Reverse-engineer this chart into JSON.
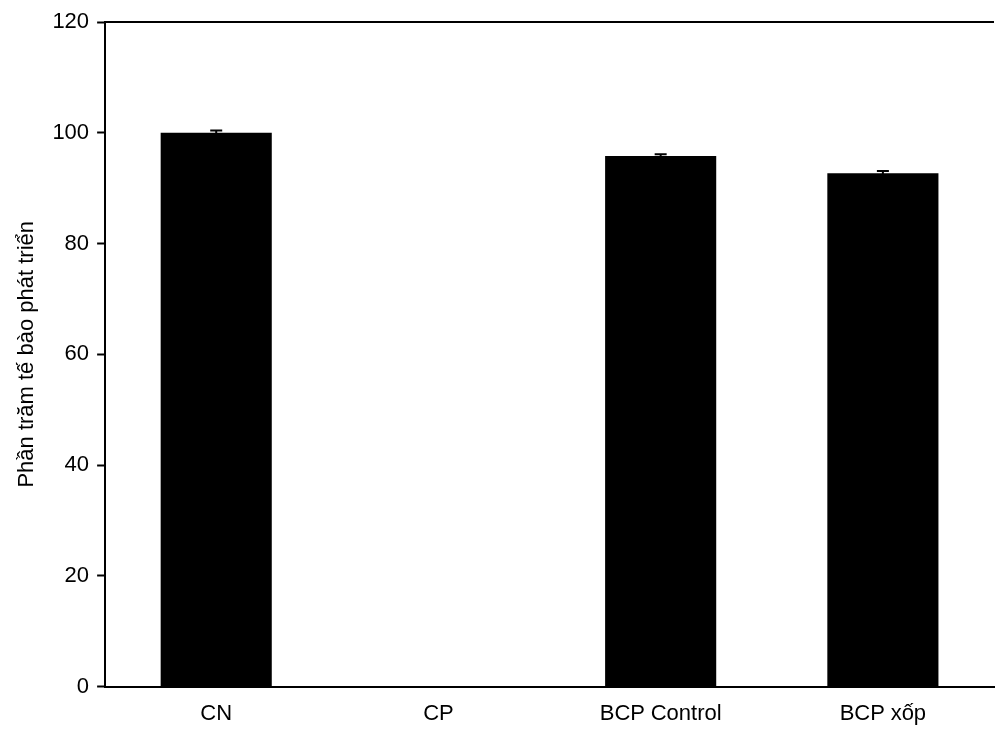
{
  "chart_data": {
    "type": "bar",
    "ylabel": "Phần trăm tế bào phát triển",
    "categories": [
      "CN",
      "CP",
      "BCP Control",
      "BCP xốp"
    ],
    "values": [
      100,
      0,
      95.8,
      92.7
    ],
    "errors": [
      0.4,
      null,
      0.3,
      0.4
    ],
    "color": "#000000",
    "ylim": [
      0,
      120
    ],
    "yticks": [
      0,
      20,
      40,
      60,
      80,
      100,
      120
    ],
    "grid": false,
    "legend": false
  }
}
